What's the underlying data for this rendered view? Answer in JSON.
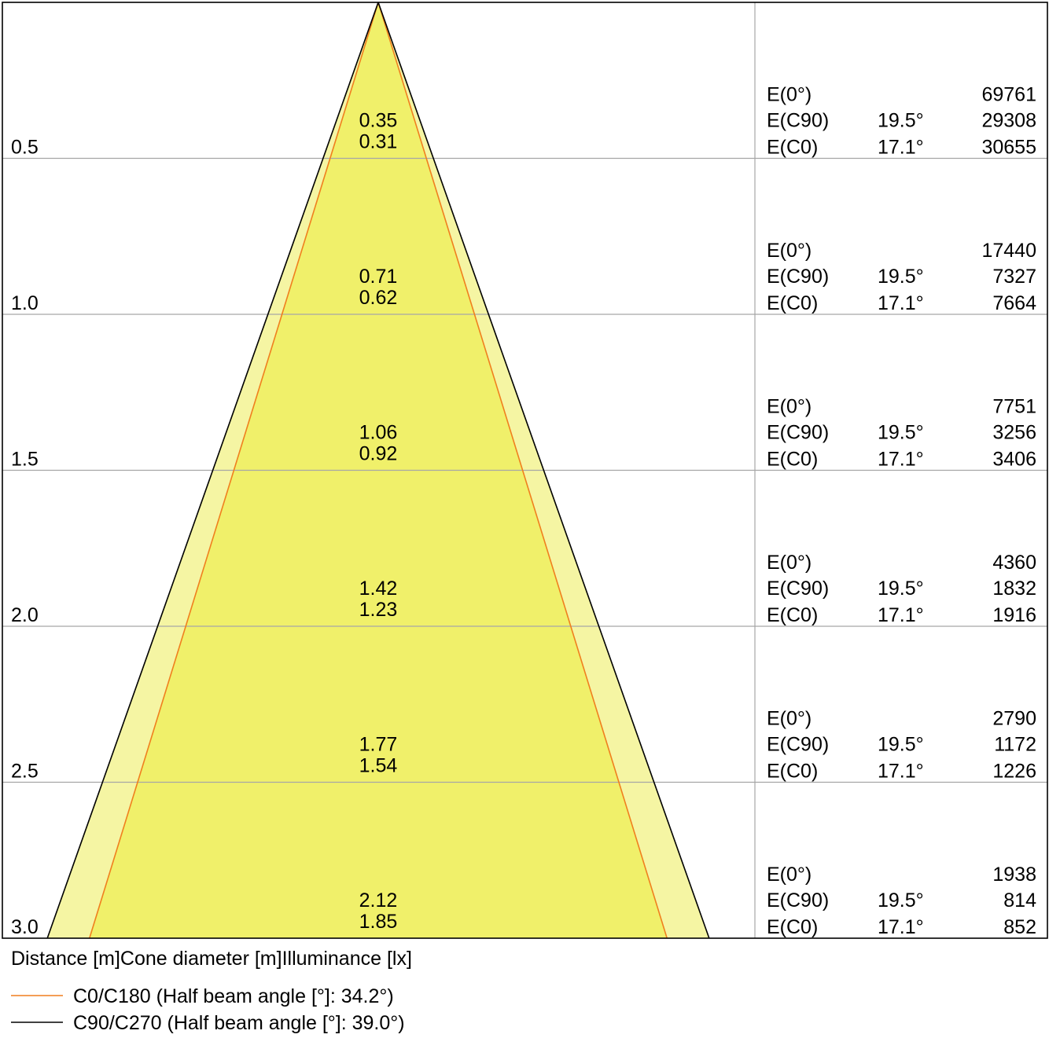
{
  "chart_data": {
    "type": "cone-diagram",
    "x_axis_label": "Distance [m]Cone diameter [m]Illuminance [lx]",
    "angles": {
      "c90_half_angle_label": "19.5°",
      "c0_half_angle_label": "17.1°"
    },
    "row_labels": {
      "e0": "E(0°)",
      "ec90": "E(C90)",
      "ec0": "E(C0)"
    },
    "rows": [
      {
        "distance": "0.5",
        "d_c90": "0.35",
        "d_c0": "0.31",
        "e0": "69761",
        "ec90": "29308",
        "ec0": "30655"
      },
      {
        "distance": "1.0",
        "d_c90": "0.71",
        "d_c0": "0.62",
        "e0": "17440",
        "ec90": "7327",
        "ec0": "7664"
      },
      {
        "distance": "1.5",
        "d_c90": "1.06",
        "d_c0": "0.92",
        "e0": "7751",
        "ec90": "3256",
        "ec0": "3406"
      },
      {
        "distance": "2.0",
        "d_c90": "1.42",
        "d_c0": "1.23",
        "e0": "4360",
        "ec90": "1832",
        "ec0": "1916"
      },
      {
        "distance": "2.5",
        "d_c90": "1.77",
        "d_c0": "1.54",
        "e0": "2790",
        "ec90": "1172",
        "ec0": "1226"
      },
      {
        "distance": "3.0",
        "d_c90": "2.12",
        "d_c0": "1.85",
        "e0": "1938",
        "ec90": "814",
        "ec0": "852"
      }
    ],
    "legend": [
      {
        "label": "C0/C180 (Half beam angle [°]: 34.2°)",
        "color": "#f07f1e"
      },
      {
        "label": "C90/C270 (Half beam angle [°]: 39.0°)",
        "color": "#000000"
      }
    ],
    "colors": {
      "outer_cone": "#f5f5a3",
      "inner_cone": "#f0f06a",
      "grid": "#a6a6a6"
    }
  }
}
